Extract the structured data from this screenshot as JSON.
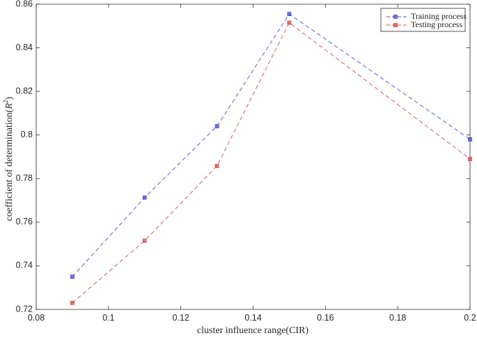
{
  "chart_data": {
    "type": "line",
    "xlabel": "cluster influence range(CIR)",
    "ylabel_prefix": "coefficient of determination(",
    "ylabel_symbol": "R",
    "ylabel_sup": "2",
    "ylabel_suffix": ")",
    "xlim": [
      0.08,
      0.2
    ],
    "ylim": [
      0.72,
      0.86
    ],
    "xticks": [
      0.08,
      0.1,
      0.12,
      0.14,
      0.16,
      0.18,
      0.2
    ],
    "xtick_labels": [
      "0.08",
      "0.1",
      "0.12",
      "0.14",
      "0.16",
      "0.18",
      "0.2"
    ],
    "yticks": [
      0.72,
      0.74,
      0.76,
      0.78,
      0.8,
      0.82,
      0.84,
      0.86
    ],
    "ytick_labels": [
      "0.72",
      "0.74",
      "0.76",
      "0.78",
      "0.8",
      "0.82",
      "0.84",
      "0.86"
    ],
    "grid": false,
    "legend_position": "top-right",
    "series": [
      {
        "name": "Training process",
        "color": "#4a4acf",
        "line_style": "dashed",
        "marker": "square",
        "x": [
          0.09,
          0.11,
          0.13,
          0.15,
          0.2
        ],
        "y": [
          0.735,
          0.7713,
          0.804,
          0.8555,
          0.798
        ]
      },
      {
        "name": "Testing process",
        "color": "#d24a4a",
        "line_style": "dashed",
        "marker": "square",
        "x": [
          0.09,
          0.11,
          0.13,
          0.15,
          0.2
        ],
        "y": [
          0.723,
          0.7515,
          0.7858,
          0.8515,
          0.789
        ]
      }
    ]
  }
}
